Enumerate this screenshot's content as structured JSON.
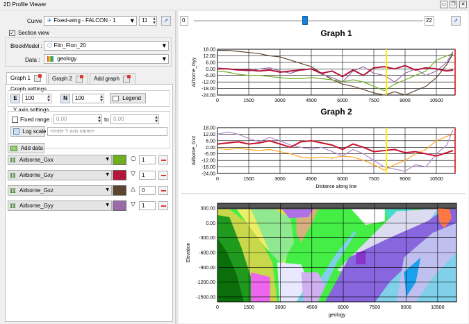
{
  "window": {
    "title": "2D Profile Viewer",
    "buttons": {
      "restore": "▭",
      "max": "❐",
      "close": "✕"
    }
  },
  "curve": {
    "label": "Curve :",
    "value": "Fixed-wing - FALCON - 1",
    "index": "11"
  },
  "section_view": {
    "label": "Section view",
    "checked": "✓"
  },
  "blockmodel": {
    "label": "BlockModel :",
    "value": "Flin_Flon_20"
  },
  "data_field": {
    "label": "Data :",
    "value": "geology"
  },
  "tabs": [
    {
      "label": "Graph 1"
    },
    {
      "label": "Graph 2"
    },
    {
      "label": "Add graph"
    }
  ],
  "graph_settings": {
    "title": "Graph settings",
    "e_label": "E",
    "e_value": "100",
    "n_label": "N",
    "n_value": "100",
    "legend_label": "Legend"
  },
  "y_axis_settings": {
    "title": "Y axis settings",
    "fixed_range_label": "Fixed range :",
    "from_value": "0.00",
    "to_label": "to",
    "to_value": "0.00",
    "log_scale_label": "Log scale",
    "axis_name_placeholder": "<enter Y axis name>"
  },
  "add_data_label": "Add data",
  "series_list": [
    {
      "name": "Airborne_Gxx",
      "color": "#6fae21",
      "marker": "○",
      "width": "1"
    },
    {
      "name": "Airborne_Gxy",
      "color": "#b4153a",
      "marker": "▽",
      "width": "1"
    },
    {
      "name": "Airborne_Gxz",
      "color": "#5c4530",
      "marker": "△",
      "width": "0"
    },
    {
      "name": "Airborne_Gyy",
      "color": "#9a6aa8",
      "marker": "▽",
      "width": "1"
    }
  ],
  "slider": {
    "min_label": "0",
    "max_label": "22",
    "value": 11
  },
  "chart_data": [
    {
      "type": "line",
      "title": "Graph 1",
      "xlabel": "",
      "ylabel": "Airborne_Gyy",
      "xlim": [
        0,
        11400
      ],
      "ylim": [
        -24,
        18
      ],
      "xticks": [
        "0",
        "1500",
        "3000",
        "4500",
        "6000",
        "7500",
        "9000",
        "10500"
      ],
      "yticks": [
        "18.00",
        "12.00",
        "6.00",
        "0.00",
        "-6.00",
        "-12.00",
        "-18.00",
        "-24.00"
      ],
      "marker_line_x": 8100,
      "series": [
        {
          "color": "#5c4530",
          "x": [
            0,
            500,
            1000,
            1500,
            2000,
            2500,
            3000,
            3500,
            4000,
            4500,
            5000,
            5500,
            6000,
            6500,
            7000,
            7500,
            8000,
            8500,
            9000,
            9500,
            10000,
            10500,
            11000,
            11300
          ],
          "values": [
            17,
            17,
            16,
            15,
            14,
            12,
            11,
            8,
            5,
            2,
            -4,
            -10,
            -14,
            -16,
            -19,
            -22,
            -24,
            -21,
            -24,
            -20,
            -16,
            -8,
            4,
            14
          ]
        },
        {
          "color": "#6fae21",
          "x": [
            0,
            500,
            1000,
            1500,
            2000,
            2500,
            3000,
            3500,
            4000,
            4500,
            5000,
            5500,
            6000,
            6500,
            7000,
            7500,
            8000,
            8500,
            9000,
            9500,
            10000,
            10500,
            11000,
            11300
          ],
          "values": [
            -2,
            -3,
            -5,
            -6,
            -6,
            -7,
            -8,
            -9,
            -9,
            -8,
            -9,
            -10,
            -12,
            -10,
            -12,
            -16,
            -20,
            -14,
            -10,
            -6,
            -2,
            8,
            12,
            14
          ]
        },
        {
          "color": "#9a6aa8",
          "x": [
            0,
            500,
            1000,
            1500,
            2000,
            2500,
            3000,
            3500,
            4000,
            4500,
            5000,
            5500,
            6000,
            6500,
            7000,
            7500,
            8000,
            8500,
            9000,
            9500,
            10000,
            10500,
            11000,
            11300
          ],
          "values": [
            1,
            0,
            -1,
            -2,
            0,
            1,
            -2,
            -4,
            -1,
            0,
            -5,
            -8,
            -12,
            -2,
            2,
            -4,
            -6,
            -12,
            -4,
            0,
            -6,
            -2,
            6,
            16
          ]
        },
        {
          "color": "#b4153a",
          "x": [
            0,
            500,
            1000,
            1500,
            2000,
            2500,
            3000,
            3500,
            4000,
            4500,
            5000,
            5500,
            6000,
            6500,
            7000,
            7500,
            8000,
            8500,
            9000,
            9500,
            10000,
            10500,
            11000,
            11300
          ],
          "values": [
            0,
            0,
            -1,
            -1,
            -2,
            -1,
            -3,
            -2,
            -1,
            0,
            -4,
            -2,
            -7,
            -1,
            -6,
            1,
            2,
            0,
            3,
            -1,
            1,
            0,
            -2,
            -1
          ]
        }
      ]
    },
    {
      "type": "line",
      "title": "Graph 2",
      "xlabel": "Distance along line",
      "ylabel": "Airborne_Gxz",
      "xlim": [
        0,
        11400
      ],
      "ylim": [
        -24,
        18
      ],
      "xticks": [
        "0",
        "1500",
        "3000",
        "4500",
        "6000",
        "7500",
        "9000",
        "10500"
      ],
      "yticks": [
        "18.00",
        "12.00",
        "6.00",
        "0.00",
        "-6.00",
        "-12.00",
        "-18.00",
        "-24.00"
      ],
      "marker_line_x": 8100,
      "series": [
        {
          "color": "#ffa520",
          "x": [
            0,
            500,
            1000,
            1500,
            2000,
            2500,
            3000,
            3500,
            4000,
            4500,
            5000,
            5500,
            6000,
            6500,
            7000,
            7500,
            8000,
            8500,
            9000,
            9500,
            10000,
            10500,
            11000,
            11300
          ],
          "values": [
            -1,
            -2,
            -1,
            -2,
            -3,
            -2,
            -4,
            -6,
            -9,
            -10,
            -9,
            -10,
            -8,
            -9,
            -12,
            -16,
            -21,
            -16,
            -12,
            -6,
            -2,
            6,
            10,
            12
          ]
        },
        {
          "color": "#b088c8",
          "x": [
            0,
            500,
            1000,
            1500,
            2000,
            2500,
            3000,
            3500,
            4000,
            4500,
            5000,
            5500,
            6000,
            6500,
            7000,
            7500,
            8000,
            8500,
            9000,
            9500,
            10000,
            10500,
            11000,
            11300
          ],
          "values": [
            12,
            14,
            12,
            8,
            5,
            9,
            6,
            2,
            0,
            -2,
            0,
            -4,
            -8,
            -2,
            -6,
            -12,
            -18,
            -20,
            -22,
            -16,
            -18,
            -6,
            2,
            16
          ]
        },
        {
          "color": "#c8102e",
          "x": [
            0,
            500,
            1000,
            1500,
            2000,
            2500,
            3000,
            3500,
            4000,
            4500,
            5000,
            5500,
            6000,
            6500,
            7000,
            7500,
            8000,
            8500,
            9000,
            9500,
            10000,
            10500,
            11000,
            11300
          ],
          "values": [
            3,
            4,
            5,
            3,
            4,
            6,
            3,
            0,
            5,
            6,
            4,
            2,
            -2,
            3,
            0,
            -4,
            -3,
            -2,
            -5,
            -4,
            -6,
            -8,
            -5,
            -3
          ]
        }
      ]
    },
    {
      "type": "section",
      "title": "",
      "xlabel": "geology",
      "ylabel": "Elevation",
      "xlim": [
        0,
        11400
      ],
      "ylim": [
        -1600,
        400
      ],
      "xticks": [
        "0",
        "1500",
        "3000",
        "4500",
        "6000",
        "7500",
        "9000",
        "10500"
      ],
      "yticks": [
        "300.00",
        "0.00",
        "-300.00",
        "-600.00",
        "-900.00",
        "-1200.00",
        "-1500.00"
      ]
    }
  ]
}
